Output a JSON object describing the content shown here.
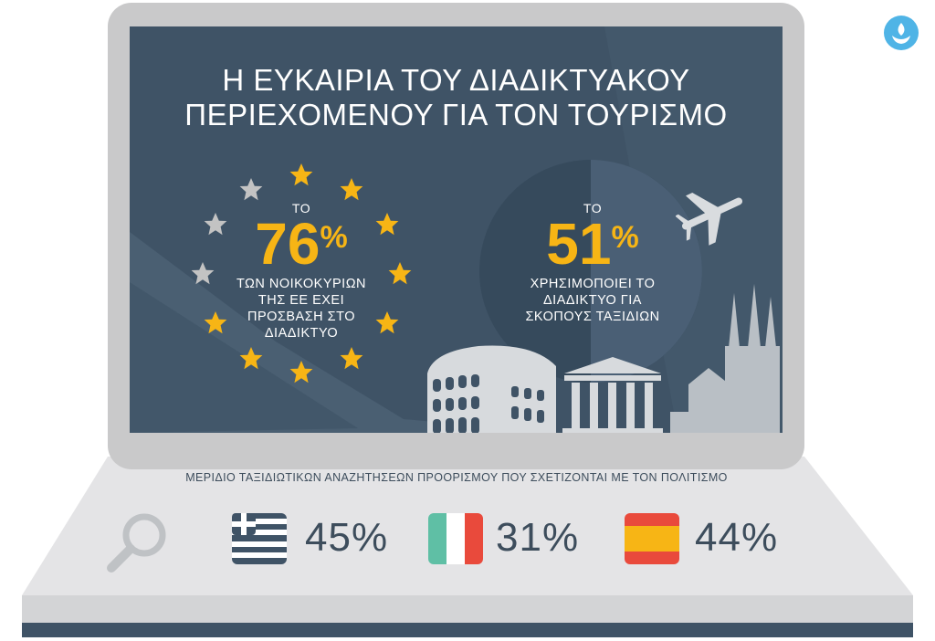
{
  "title": {
    "line1": "Η ΕΥΚΑΙΡΙΑ ΤΟΥ ΔΙΑΔΙΚΤΥΑΚΟΥ",
    "line2": "ΠΕΡΙΕΧΟΜΕΝΟΥ ΓΙΑ ΤΟΝ ΤΟΥΡΙΣΜΟ"
  },
  "stat_households": {
    "prefix": "ΤΟ",
    "value": "76",
    "unit": "%",
    "desc": [
      "ΤΩΝ ΝΟΙΚΟΚΥΡΙΩΝ",
      "ΤΗΣ ΕΕ ΕΧΕΙ",
      "ΠΡΟΣΒΑΣΗ ΣΤΟ",
      "ΔΙΑΔΙΚΤΥΟ"
    ]
  },
  "stat_travel": {
    "prefix": "ΤΟ",
    "value": "51",
    "unit": "%",
    "desc": [
      "ΧΡΗΣΙΜΟΠΟΙΕΙ ΤΟ",
      "ΔΙΑΔΙΚΤΥΟ ΓΙΑ",
      "ΣΚΟΠΟΥΣ ΤΑΞΙΔΙΩΝ"
    ]
  },
  "caption": "ΜΕΡΙΔΙΟ ΤΑΞΙΔΙΩΤΙΚΩΝ ΑΝΑΖΗΤΗΣΕΩΝ ΠΡΟΟΡΙΣΜΟΥ ΠΟΥ ΣΧΕΤΙΖΟΝΤΑΙ ΜΕ ΤΟΝ ΠΟΛΙΤΙΣΜΟ",
  "countries": [
    {
      "flag": "greece-flag-icon",
      "value": "45%"
    },
    {
      "flag": "italy-flag-icon",
      "value": "31%"
    },
    {
      "flag": "spain-flag-icon",
      "value": "44%"
    }
  ],
  "icons": [
    "search-icon",
    "star-icon",
    "airplane-icon",
    "colosseum-icon",
    "temple-icon",
    "cathedral-icon",
    "logo-icon"
  ],
  "colors": {
    "screen": "#3f5366",
    "accent": "#f7b515",
    "star_grey": "#c3c3c3",
    "text_dark": "#3d4d5c"
  }
}
